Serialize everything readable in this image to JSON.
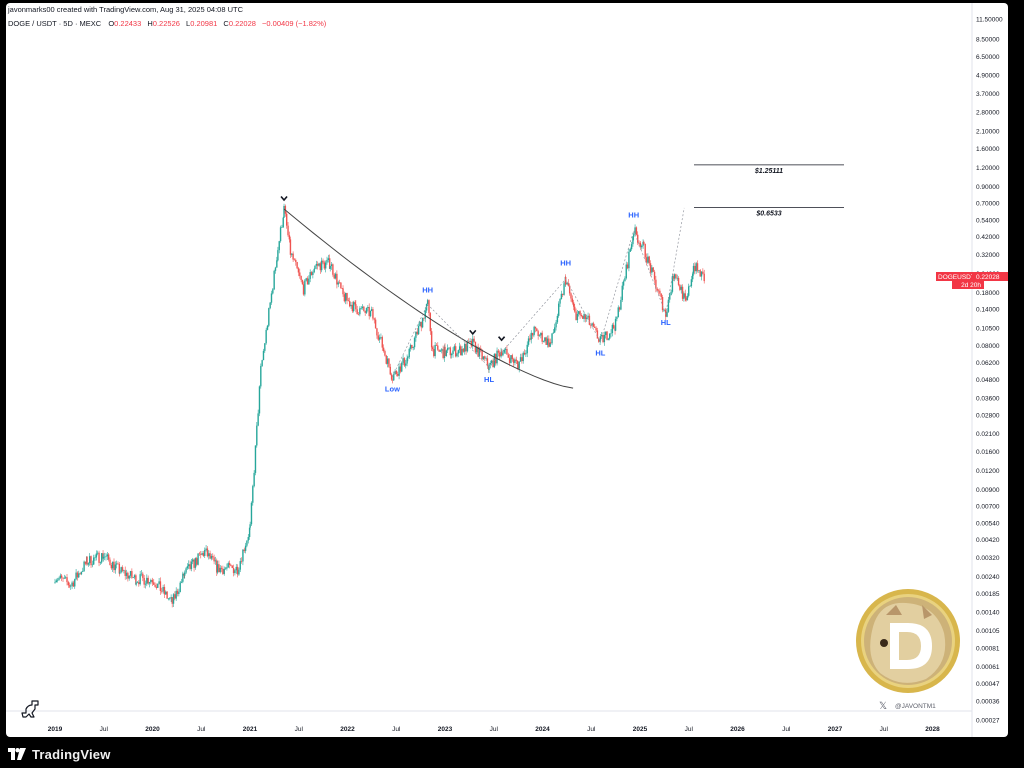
{
  "header": {
    "byline": "javonmarks00 created with TradingView.com, Aug 31, 2025 04:08 UTC",
    "symbol": "DOGE / USDT · 5D · MEXC",
    "open_label": "O",
    "open": "0.22433",
    "high_label": "H",
    "high": "0.22526",
    "low_label": "L",
    "low": "0.20981",
    "close_label": "C",
    "close": "0.22028",
    "change": "−0.00409 (−1.82%)"
  },
  "price_tag": {
    "symbol": "DOGEUSDT",
    "price": "0.22028",
    "countdown": "2d 20h"
  },
  "watermark": {
    "handle": "@JAVONTM1"
  },
  "brand": {
    "name": "TradingView"
  },
  "colors": {
    "up": "#26a69a",
    "down": "#ef5350",
    "pattern_label": "#2962ff",
    "price_tag_bg": "#f23645",
    "trendline": "#444444",
    "background": "#ffffff",
    "frame": "#000000"
  },
  "chart_data": {
    "type": "line",
    "scale": "log",
    "grid": false,
    "yticks": [
      "11.50000",
      "8.50000",
      "6.50000",
      "4.90000",
      "3.70000",
      "2.80000",
      "2.10000",
      "1.60000",
      "1.20000",
      "0.90000",
      "0.70000",
      "0.54000",
      "0.42000",
      "0.32000",
      "0.24000",
      "0.18000",
      "0.14000",
      "0.10500",
      "0.08000",
      "0.06200",
      "0.04800",
      "0.03600",
      "0.02800",
      "0.02100",
      "0.01600",
      "0.01200",
      "0.00900",
      "0.00700",
      "0.00540",
      "0.00420",
      "0.00320",
      "0.00240",
      "0.00185",
      "0.00140",
      "0.00105",
      "0.00081",
      "0.00061",
      "0.00047",
      "0.00036",
      "0.00027"
    ],
    "xticks": [
      "2019",
      "Jul",
      "2020",
      "Jul",
      "2021",
      "Jul",
      "2022",
      "Jul",
      "2023",
      "Jul",
      "2024",
      "Jul",
      "2025",
      "Jul",
      "2026",
      "Jul",
      "2027",
      "Jul",
      "2028"
    ],
    "x_range": [
      "2019-01",
      "2028-03"
    ],
    "series": [
      {
        "points": [
          [
            "2019-01-01",
            0.0024
          ],
          [
            "2019-03-01",
            0.0021
          ],
          [
            "2019-05-01",
            0.003
          ],
          [
            "2019-07-01",
            0.0033
          ],
          [
            "2019-09-01",
            0.0026
          ],
          [
            "2019-11-01",
            0.0023
          ],
          [
            "2020-01-01",
            0.0023
          ],
          [
            "2020-03-15",
            0.0016
          ],
          [
            "2020-05-01",
            0.0025
          ],
          [
            "2020-07-15",
            0.0035
          ],
          [
            "2020-09-01",
            0.0027
          ],
          [
            "2020-11-15",
            0.0027
          ],
          [
            "2021-01-01",
            0.005
          ],
          [
            "2021-02-10",
            0.055
          ],
          [
            "2021-04-15",
            0.35
          ],
          [
            "2021-05-08",
            0.64
          ],
          [
            "2021-06-01",
            0.33
          ],
          [
            "2021-07-20",
            0.19
          ],
          [
            "2021-09-01",
            0.27
          ],
          [
            "2021-10-28",
            0.28
          ],
          [
            "2021-12-15",
            0.17
          ],
          [
            "2022-02-01",
            0.14
          ],
          [
            "2022-04-01",
            0.13
          ],
          [
            "2022-06-18",
            0.05
          ],
          [
            "2022-08-15",
            0.067
          ],
          [
            "2022-10-28",
            0.15
          ],
          [
            "2022-11-15",
            0.075
          ],
          [
            "2023-01-01",
            0.072
          ],
          [
            "2023-03-01",
            0.075
          ],
          [
            "2023-04-15",
            0.082
          ],
          [
            "2023-06-15",
            0.058
          ],
          [
            "2023-08-01",
            0.075
          ],
          [
            "2023-10-01",
            0.06
          ],
          [
            "2023-12-01",
            0.1
          ],
          [
            "2024-02-01",
            0.082
          ],
          [
            "2024-03-28",
            0.22
          ],
          [
            "2024-05-01",
            0.13
          ],
          [
            "2024-06-15",
            0.12
          ],
          [
            "2024-08-05",
            0.085
          ],
          [
            "2024-10-01",
            0.11
          ],
          [
            "2024-12-08",
            0.46
          ],
          [
            "2025-01-15",
            0.35
          ],
          [
            "2025-03-01",
            0.2
          ],
          [
            "2025-04-07",
            0.13
          ],
          [
            "2025-05-10",
            0.25
          ],
          [
            "2025-06-22",
            0.15
          ],
          [
            "2025-07-20",
            0.27
          ],
          [
            "2025-08-31",
            0.22028
          ]
        ]
      }
    ],
    "annotations": {
      "labels": [
        {
          "text": "Low",
          "x": "2022-06-18",
          "y": 0.04
        },
        {
          "text": "HH",
          "x": "2022-10-28",
          "y": 0.18
        },
        {
          "text": "HL",
          "x": "2023-06-15",
          "y": 0.046
        },
        {
          "text": "HH",
          "x": "2024-03-28",
          "y": 0.27
        },
        {
          "text": "HL",
          "x": "2024-08-05",
          "y": 0.069
        },
        {
          "text": "HH",
          "x": "2024-12-08",
          "y": 0.56
        },
        {
          "text": "HL",
          "x": "2025-04-07",
          "y": 0.11
        }
      ],
      "targets": [
        {
          "text": "$1.25111",
          "value": 1.25111
        },
        {
          "text": "$0.6533",
          "value": 0.6533
        }
      ],
      "peak_markers": [
        {
          "x": "2021-05-08",
          "y": 0.75
        },
        {
          "x": "2023-04-15",
          "y": 0.098
        },
        {
          "x": "2023-08-01",
          "y": 0.089
        }
      ]
    }
  }
}
